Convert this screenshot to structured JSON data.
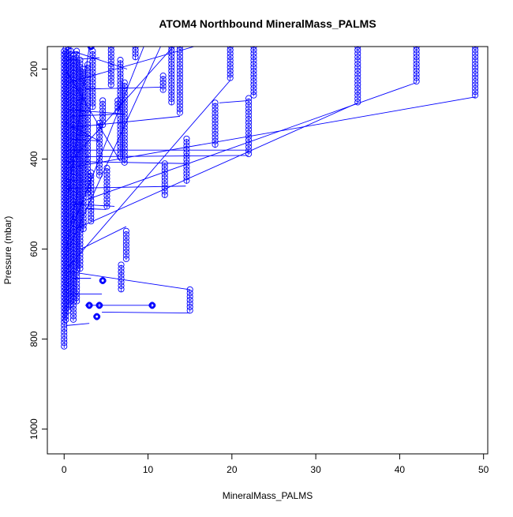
{
  "chart_data": {
    "type": "scatter",
    "title": "ATOM4 Northbound MineralMass_PALMS",
    "xlabel": "MineralMass_PALMS",
    "ylabel": "Pressure (mbar)",
    "xlim": [
      -2,
      50.5
    ],
    "ylim": [
      1055,
      150
    ],
    "y_reversed": true,
    "x_ticks": [
      0,
      10,
      20,
      30,
      40,
      50
    ],
    "y_ticks": [
      200,
      400,
      600,
      800,
      1000
    ],
    "grid": false,
    "legend": "none",
    "marker": "open-circle",
    "connect_points": true,
    "color": "#0000ff",
    "columns": [
      {
        "x": 0.0,
        "y_start": 160,
        "y_end": 820
      },
      {
        "x": 0.2,
        "y_start": 155,
        "y_end": 760
      },
      {
        "x": 0.5,
        "y_start": 150,
        "y_end": 740
      },
      {
        "x": 0.8,
        "y_start": 160,
        "y_end": 730
      },
      {
        "x": 1.1,
        "y_start": 170,
        "y_end": 760
      },
      {
        "x": 1.5,
        "y_start": 160,
        "y_end": 720
      },
      {
        "x": 1.9,
        "y_start": 180,
        "y_end": 650
      },
      {
        "x": 2.3,
        "y_start": 200,
        "y_end": 560
      },
      {
        "x": 2.8,
        "y_start": 190,
        "y_end": 480
      },
      {
        "x": 3.2,
        "y_start": 430,
        "y_end": 540
      },
      {
        "x": 3.4,
        "y_start": 160,
        "y_end": 290
      },
      {
        "x": 4.2,
        "y_start": 320,
        "y_end": 440
      },
      {
        "x": 4.6,
        "y_start": 270,
        "y_end": 330
      },
      {
        "x": 5.1,
        "y_start": 420,
        "y_end": 510
      },
      {
        "x": 5.6,
        "y_start": 150,
        "y_end": 240
      },
      {
        "x": 6.4,
        "y_start": 270,
        "y_end": 300
      },
      {
        "x": 6.7,
        "y_start": 180,
        "y_end": 400
      },
      {
        "x": 7.2,
        "y_start": 230,
        "y_end": 410
      },
      {
        "x": 7.4,
        "y_start": 560,
        "y_end": 625
      },
      {
        "x": 6.8,
        "y_start": 635,
        "y_end": 695
      },
      {
        "x": 8.5,
        "y_start": 150,
        "y_end": 180
      },
      {
        "x": 11.8,
        "y_start": 215,
        "y_end": 250
      },
      {
        "x": 12.0,
        "y_start": 410,
        "y_end": 485
      },
      {
        "x": 12.8,
        "y_start": 150,
        "y_end": 280
      },
      {
        "x": 13.8,
        "y_start": 150,
        "y_end": 300
      },
      {
        "x": 14.6,
        "y_start": 355,
        "y_end": 455
      },
      {
        "x": 15.0,
        "y_start": 690,
        "y_end": 740
      },
      {
        "x": 18.0,
        "y_start": 275,
        "y_end": 375
      },
      {
        "x": 19.8,
        "y_start": 150,
        "y_end": 225
      },
      {
        "x": 22.0,
        "y_start": 265,
        "y_end": 390
      },
      {
        "x": 22.6,
        "y_start": 150,
        "y_end": 260
      },
      {
        "x": 35.0,
        "y_start": 150,
        "y_end": 275
      },
      {
        "x": 42.0,
        "y_start": 150,
        "y_end": 230
      },
      {
        "x": 49.0,
        "y_start": 150,
        "y_end": 265
      }
    ],
    "connector_lines": [
      [
        [
          0.3,
          420
        ],
        [
          49.0,
          262
        ]
      ],
      [
        [
          1.2,
          500
        ],
        [
          42.0,
          230
        ]
      ],
      [
        [
          0.8,
          560
        ],
        [
          35.0,
          275
        ]
      ],
      [
        [
          18.5,
          275
        ],
        [
          22.0,
          270
        ]
      ],
      [
        [
          0.5,
          640
        ],
        [
          19.8,
          225
        ]
      ],
      [
        [
          0.2,
          380
        ],
        [
          22.0,
          380
        ]
      ],
      [
        [
          0.2,
          395
        ],
        [
          22.0,
          392
        ]
      ],
      [
        [
          0.5,
          230
        ],
        [
          15.5,
          150
        ]
      ],
      [
        [
          0.2,
          465
        ],
        [
          14.5,
          460
        ]
      ],
      [
        [
          0.5,
          410
        ],
        [
          13.0,
          150
        ]
      ],
      [
        [
          0.8,
          330
        ],
        [
          13.8,
          305
        ]
      ],
      [
        [
          1.5,
          245
        ],
        [
          12.0,
          240
        ]
      ],
      [
        [
          0.5,
          600
        ],
        [
          11.5,
          150
        ]
      ],
      [
        [
          1.0,
          550
        ],
        [
          9.5,
          150
        ]
      ],
      [
        [
          0.3,
          205
        ],
        [
          6.7,
          405
        ]
      ],
      [
        [
          1.0,
          160
        ],
        [
          7.5,
          200
        ]
      ],
      [
        [
          0.5,
          290
        ],
        [
          7.2,
          300
        ]
      ],
      [
        [
          0.8,
          305
        ],
        [
          6.5,
          300
        ]
      ],
      [
        [
          0.2,
          320
        ],
        [
          4.2,
          360
        ]
      ],
      [
        [
          1.4,
          345
        ],
        [
          3.2,
          350
        ]
      ],
      [
        [
          0.5,
          355
        ],
        [
          4.4,
          360
        ]
      ],
      [
        [
          0.2,
          405
        ],
        [
          14.8,
          410
        ]
      ],
      [
        [
          1.3,
          500
        ],
        [
          6.0,
          505
        ]
      ],
      [
        [
          2.5,
          510
        ],
        [
          5.0,
          512
        ]
      ],
      [
        [
          0.5,
          650
        ],
        [
          15.0,
          690
        ]
      ],
      [
        [
          0.6,
          700
        ],
        [
          4.5,
          700
        ]
      ],
      [
        [
          2.5,
          725
        ],
        [
          10.5,
          725
        ]
      ],
      [
        [
          4.5,
          740
        ],
        [
          15.0,
          742
        ]
      ],
      [
        [
          0.2,
          770
        ],
        [
          3.0,
          765
        ]
      ],
      [
        [
          0.2,
          150
        ],
        [
          6.0,
          150
        ]
      ],
      [
        [
          0.4,
          180
        ],
        [
          4.2,
          175
        ]
      ],
      [
        [
          1.5,
          270
        ],
        [
          2.5,
          265
        ]
      ],
      [
        [
          0.2,
          445
        ],
        [
          2.8,
          450
        ]
      ],
      [
        [
          1.0,
          665
        ],
        [
          3.2,
          665
        ]
      ],
      [
        [
          0.3,
          600
        ],
        [
          1.6,
          470
        ]
      ],
      [
        [
          0.5,
          480
        ],
        [
          3.0,
          150
        ]
      ],
      [
        [
          2.0,
          600
        ],
        [
          7.4,
          550
        ]
      ]
    ],
    "clusters": [
      {
        "x": 4.6,
        "y": 670
      },
      {
        "x": 3.0,
        "y": 725
      },
      {
        "x": 4.2,
        "y": 725
      },
      {
        "x": 10.5,
        "y": 725
      },
      {
        "x": 3.9,
        "y": 750
      },
      {
        "x": 3.2,
        "y": 150
      }
    ]
  }
}
